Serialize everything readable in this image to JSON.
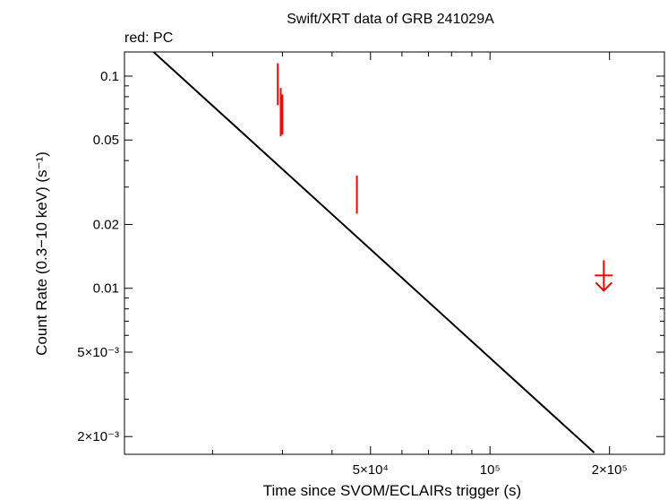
{
  "chart_data": {
    "type": "scatter",
    "title": "Swift/XRT data of GRB 241029A",
    "subtitle": "red: PC",
    "xlabel": "Time since SVOM/ECLAIRs trigger (s)",
    "ylabel": "Count Rate (0.3−10 keV) (s⁻¹)",
    "x_scale": "log",
    "y_scale": "log",
    "xlim": [
      12000,
      275000
    ],
    "ylim": [
      0.00165,
      0.13
    ],
    "x_ticks": [
      {
        "value": 50000,
        "label": "5×10⁴"
      },
      {
        "value": 100000,
        "label": "10⁵"
      },
      {
        "value": 200000,
        "label": "2×10⁵"
      }
    ],
    "y_ticks": [
      {
        "value": 0.1,
        "label": "0.1"
      },
      {
        "value": 0.05,
        "label": "0.05"
      },
      {
        "value": 0.02,
        "label": "0.02"
      },
      {
        "value": 0.01,
        "label": "0.01"
      },
      {
        "value": 0.005,
        "label": "5×10⁻³"
      },
      {
        "value": 0.002,
        "label": "2×10⁻³"
      }
    ],
    "grid": false,
    "series": [
      {
        "color": "#ff0000",
        "points": [
          {
            "x": 29200,
            "y": 0.085,
            "y_low": 0.073,
            "y_high": 0.115
          },
          {
            "x": 29700,
            "y": 0.068,
            "y_low": 0.052,
            "y_high": 0.088
          },
          {
            "x": 30000,
            "y": 0.069,
            "y_low": 0.053,
            "y_high": 0.082
          },
          {
            "x": 46200,
            "y": 0.028,
            "y_low": 0.0225,
            "y_high": 0.034
          }
        ],
        "upper_limits": [
          {
            "x": 193500,
            "y": 0.0115
          }
        ]
      }
    ],
    "model_line": {
      "color": "#000000",
      "from": {
        "x": 14200,
        "y": 0.13
      },
      "to": {
        "x": 183000,
        "y": 0.00168
      }
    }
  }
}
